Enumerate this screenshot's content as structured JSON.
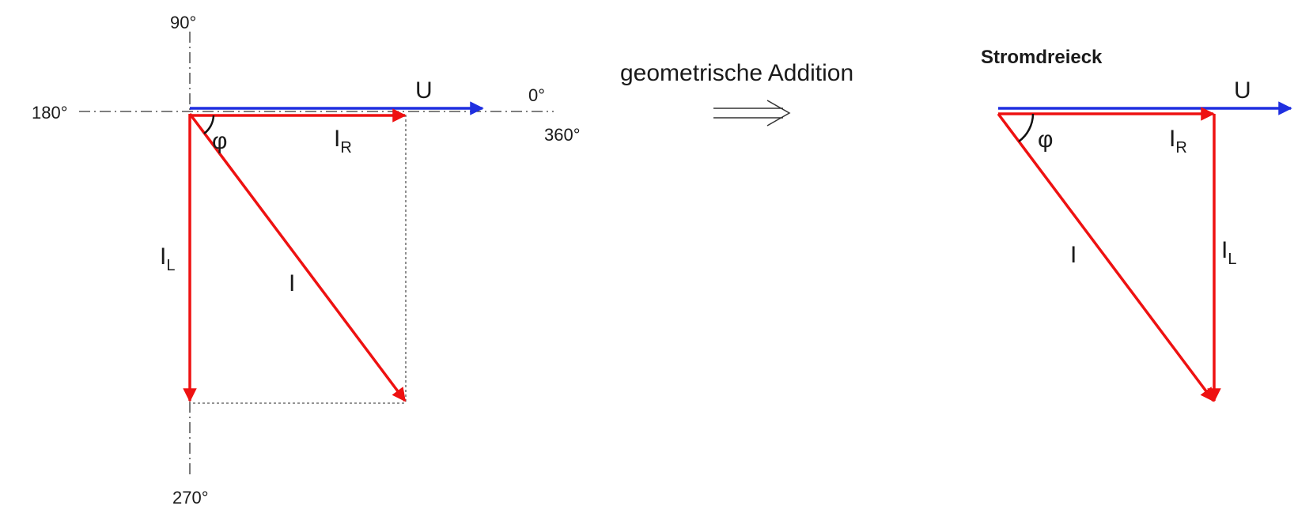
{
  "left": {
    "angles": {
      "a90": "90°",
      "a180": "180°",
      "a0": "0°",
      "a360": "360°",
      "a270": "270°"
    },
    "U": "U",
    "IR": {
      "main": "I",
      "sub": "R"
    },
    "IL": {
      "main": "I",
      "sub": "L"
    },
    "I": "I",
    "phi": "φ"
  },
  "middle": {
    "text": "geometrische Addition",
    "arrow": "⟹"
  },
  "right": {
    "title": "Stromdreieck",
    "U": "U",
    "IR": {
      "main": "I",
      "sub": "R"
    },
    "IL": {
      "main": "I",
      "sub": "L"
    },
    "I": "I",
    "phi": "φ"
  },
  "colors": {
    "current": "#ee1111",
    "voltage": "#1f2fe0"
  }
}
